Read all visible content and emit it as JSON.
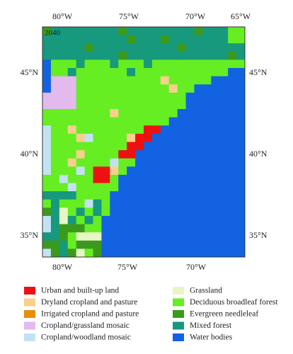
{
  "map": {
    "year_label": "2040",
    "top_axis_labels": [
      "80°W",
      "75°W",
      "70°W",
      "65°W"
    ],
    "bottom_axis_labels": [
      "80°W",
      "75°W",
      "70°W"
    ],
    "left_axis_labels": [
      "45°N",
      "40°N",
      "35°N"
    ],
    "right_axis_labels": [
      "45°N",
      "40°N",
      "35°N"
    ],
    "legend": [
      {
        "label": "Urban and built-up land",
        "color": "#ee1111"
      },
      {
        "label": "Dryland cropland and pasture",
        "color": "#f8cf8c"
      },
      {
        "label": "Irrigated cropland and pasture",
        "color": "#e58e0c"
      },
      {
        "label": "Cropland/grassland mosaic",
        "color": "#e3b9ee"
      },
      {
        "label": "Cropland/woodland mosaic",
        "color": "#c2e2f4"
      },
      {
        "label": "Grassland",
        "color": "#e7f6c4"
      },
      {
        "label": "Deciduous broadleaf forest",
        "color": "#66ee22"
      },
      {
        "label": "Evergreen needleleaf",
        "color": "#3b9a1c"
      },
      {
        "label": "Mixed forest",
        "color": "#16997d"
      },
      {
        "label": "Water bodies",
        "color": "#1262e2"
      }
    ]
  }
}
